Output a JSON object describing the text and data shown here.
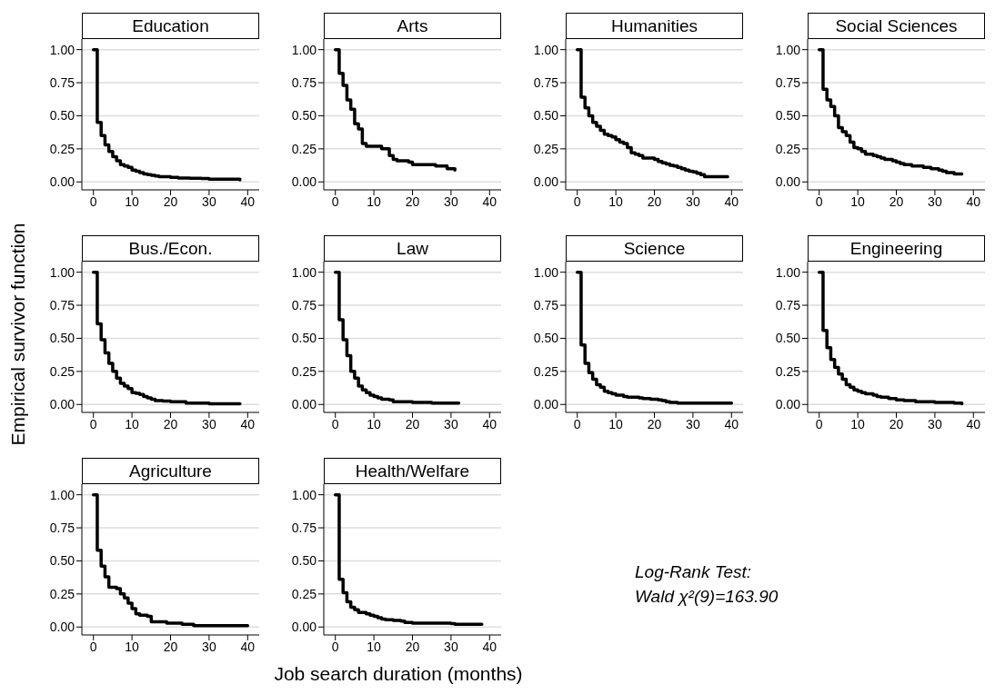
{
  "chart_data": [
    {
      "type": "step",
      "title": "Education",
      "color": "#000000",
      "x": [
        0,
        1,
        2,
        3,
        4,
        5,
        6,
        7,
        8,
        9,
        10,
        11,
        12,
        13,
        14,
        15,
        16,
        17,
        20,
        22,
        25,
        28,
        30,
        38
      ],
      "values": [
        1,
        0.45,
        0.35,
        0.28,
        0.23,
        0.19,
        0.16,
        0.13,
        0.12,
        0.11,
        0.09,
        0.08,
        0.07,
        0.06,
        0.055,
        0.05,
        0.045,
        0.04,
        0.035,
        0.03,
        0.028,
        0.025,
        0.02,
        0.015
      ],
      "xlim": [
        -3,
        43
      ],
      "ylim": [
        -0.06,
        1.08
      ],
      "xticks": [
        0,
        10,
        20,
        30,
        40
      ],
      "yticks": [
        {
          "value": 0,
          "label": "0.00"
        },
        {
          "value": 0.25,
          "label": "0.25"
        },
        {
          "value": 0.5,
          "label": "0.50"
        },
        {
          "value": 0.75,
          "label": "0.75"
        },
        {
          "value": 1,
          "label": "1.00"
        }
      ],
      "grid": "y"
    },
    {
      "type": "step",
      "title": "Arts",
      "color": "#000000",
      "x": [
        0,
        1,
        2,
        3,
        4,
        5,
        6,
        7,
        8,
        12,
        14,
        15,
        16,
        19,
        20,
        26,
        29,
        31
      ],
      "values": [
        1,
        0.82,
        0.73,
        0.62,
        0.55,
        0.44,
        0.4,
        0.29,
        0.27,
        0.25,
        0.2,
        0.17,
        0.16,
        0.15,
        0.13,
        0.12,
        0.1,
        0.09
      ],
      "xlim": [
        -3,
        43
      ],
      "ylim": [
        -0.06,
        1.08
      ],
      "xticks": [
        0,
        10,
        20,
        30,
        40
      ],
      "yticks": [
        {
          "value": 0,
          "label": "0.00"
        },
        {
          "value": 0.25,
          "label": "0.25"
        },
        {
          "value": 0.5,
          "label": "0.50"
        },
        {
          "value": 0.75,
          "label": "0.75"
        },
        {
          "value": 1,
          "label": "1.00"
        }
      ],
      "grid": "y"
    },
    {
      "type": "step",
      "title": "Humanities",
      "color": "#000000",
      "x": [
        0,
        1,
        2,
        3,
        4,
        5,
        6,
        7,
        8,
        9,
        10,
        11,
        12,
        13,
        14,
        15,
        16,
        17,
        20,
        21,
        22,
        23,
        24,
        25,
        26,
        27,
        28,
        29,
        30,
        31,
        32,
        33,
        39
      ],
      "values": [
        1,
        0.64,
        0.56,
        0.5,
        0.45,
        0.42,
        0.39,
        0.36,
        0.35,
        0.34,
        0.32,
        0.3,
        0.29,
        0.26,
        0.22,
        0.21,
        0.2,
        0.18,
        0.17,
        0.155,
        0.145,
        0.135,
        0.125,
        0.12,
        0.11,
        0.1,
        0.09,
        0.08,
        0.075,
        0.065,
        0.055,
        0.04,
        0.04
      ],
      "xlim": [
        -3,
        43
      ],
      "ylim": [
        -0.06,
        1.08
      ],
      "xticks": [
        0,
        10,
        20,
        30,
        40
      ],
      "yticks": [
        {
          "value": 0,
          "label": "0.00"
        },
        {
          "value": 0.25,
          "label": "0.25"
        },
        {
          "value": 0.5,
          "label": "0.50"
        },
        {
          "value": 0.75,
          "label": "0.75"
        },
        {
          "value": 1,
          "label": "1.00"
        }
      ],
      "grid": "y"
    },
    {
      "type": "step",
      "title": "Social Sciences",
      "color": "#000000",
      "x": [
        0,
        1,
        2,
        3,
        4,
        5,
        6,
        7,
        8,
        9,
        10,
        11,
        12,
        14,
        15,
        16,
        17,
        19,
        20,
        21,
        22,
        24,
        27,
        29,
        31,
        32,
        33,
        35,
        37
      ],
      "values": [
        1,
        0.7,
        0.62,
        0.57,
        0.5,
        0.41,
        0.38,
        0.35,
        0.3,
        0.26,
        0.25,
        0.23,
        0.21,
        0.2,
        0.19,
        0.18,
        0.17,
        0.16,
        0.15,
        0.14,
        0.13,
        0.12,
        0.11,
        0.1,
        0.09,
        0.08,
        0.07,
        0.06,
        0.06
      ],
      "xlim": [
        -3,
        43
      ],
      "ylim": [
        -0.06,
        1.08
      ],
      "xticks": [
        0,
        10,
        20,
        30,
        40
      ],
      "yticks": [
        {
          "value": 0,
          "label": "0.00"
        },
        {
          "value": 0.25,
          "label": "0.25"
        },
        {
          "value": 0.5,
          "label": "0.50"
        },
        {
          "value": 0.75,
          "label": "0.75"
        },
        {
          "value": 1,
          "label": "1.00"
        }
      ],
      "grid": "y"
    },
    {
      "type": "step",
      "title": "Bus./Econ.",
      "ylabel": "Empirical survivor function",
      "color": "#000000",
      "x": [
        0,
        1,
        2,
        3,
        4,
        5,
        6,
        7,
        8,
        9,
        10,
        11,
        12,
        13,
        14,
        15,
        16,
        18,
        20,
        24,
        30,
        38
      ],
      "values": [
        1,
        0.61,
        0.49,
        0.39,
        0.31,
        0.25,
        0.2,
        0.16,
        0.14,
        0.12,
        0.09,
        0.085,
        0.075,
        0.06,
        0.05,
        0.04,
        0.03,
        0.025,
        0.02,
        0.01,
        0.005,
        0.005
      ],
      "xlim": [
        -3,
        43
      ],
      "ylim": [
        -0.06,
        1.08
      ],
      "xticks": [
        0,
        10,
        20,
        30,
        40
      ],
      "yticks": [
        {
          "value": 0,
          "label": "0.00"
        },
        {
          "value": 0.25,
          "label": "0.25"
        },
        {
          "value": 0.5,
          "label": "0.50"
        },
        {
          "value": 0.75,
          "label": "0.75"
        },
        {
          "value": 1,
          "label": "1.00"
        }
      ],
      "grid": "y"
    },
    {
      "type": "step",
      "title": "Law",
      "color": "#000000",
      "x": [
        0,
        1,
        2,
        3,
        4,
        5,
        6,
        7,
        8,
        9,
        10,
        11,
        12,
        14,
        15,
        20,
        25,
        32
      ],
      "values": [
        1,
        0.64,
        0.49,
        0.37,
        0.25,
        0.2,
        0.14,
        0.11,
        0.09,
        0.07,
        0.06,
        0.05,
        0.04,
        0.035,
        0.02,
        0.015,
        0.01,
        0.01
      ],
      "xlim": [
        -3,
        43
      ],
      "ylim": [
        -0.06,
        1.08
      ],
      "xticks": [
        0,
        10,
        20,
        30,
        40
      ],
      "yticks": [
        {
          "value": 0,
          "label": "0.00"
        },
        {
          "value": 0.25,
          "label": "0.25"
        },
        {
          "value": 0.5,
          "label": "0.50"
        },
        {
          "value": 0.75,
          "label": "0.75"
        },
        {
          "value": 1,
          "label": "1.00"
        }
      ],
      "grid": "y"
    },
    {
      "type": "step",
      "title": "Science",
      "color": "#000000",
      "x": [
        0,
        1,
        2,
        3,
        4,
        5,
        6,
        7,
        8,
        9,
        10,
        12,
        13,
        16,
        17,
        19,
        21,
        22,
        23,
        24,
        26,
        40
      ],
      "values": [
        1,
        0.45,
        0.31,
        0.24,
        0.19,
        0.15,
        0.13,
        0.1,
        0.09,
        0.08,
        0.07,
        0.06,
        0.055,
        0.05,
        0.045,
        0.04,
        0.035,
        0.03,
        0.02,
        0.015,
        0.01,
        0.01
      ],
      "xlim": [
        -3,
        43
      ],
      "ylim": [
        -0.06,
        1.08
      ],
      "xticks": [
        0,
        10,
        20,
        30,
        40
      ],
      "yticks": [
        {
          "value": 0,
          "label": "0.00"
        },
        {
          "value": 0.25,
          "label": "0.25"
        },
        {
          "value": 0.5,
          "label": "0.50"
        },
        {
          "value": 0.75,
          "label": "0.75"
        },
        {
          "value": 1,
          "label": "1.00"
        }
      ],
      "grid": "y"
    },
    {
      "type": "step",
      "title": "Engineering",
      "color": "#000000",
      "x": [
        0,
        1,
        2,
        3,
        4,
        5,
        6,
        7,
        8,
        9,
        10,
        11,
        12,
        14,
        15,
        16,
        18,
        20,
        22,
        25,
        30,
        35,
        37
      ],
      "values": [
        1,
        0.56,
        0.43,
        0.34,
        0.28,
        0.23,
        0.19,
        0.15,
        0.13,
        0.11,
        0.1,
        0.09,
        0.08,
        0.07,
        0.06,
        0.055,
        0.045,
        0.035,
        0.03,
        0.02,
        0.015,
        0.01,
        0.005
      ],
      "xlim": [
        -3,
        43
      ],
      "ylim": [
        -0.06,
        1.08
      ],
      "xticks": [
        0,
        10,
        20,
        30,
        40
      ],
      "yticks": [
        {
          "value": 0,
          "label": "0.00"
        },
        {
          "value": 0.25,
          "label": "0.25"
        },
        {
          "value": 0.5,
          "label": "0.50"
        },
        {
          "value": 0.75,
          "label": "0.75"
        },
        {
          "value": 1,
          "label": "1.00"
        }
      ],
      "grid": "y"
    },
    {
      "type": "step",
      "title": "Agriculture",
      "xlabel": "Job search duration (months)",
      "color": "#000000",
      "x": [
        0,
        1,
        2,
        3,
        4,
        6,
        7,
        8,
        9,
        10,
        11,
        12,
        14,
        15,
        19,
        23,
        26,
        40
      ],
      "values": [
        1,
        0.58,
        0.46,
        0.38,
        0.3,
        0.29,
        0.25,
        0.22,
        0.18,
        0.14,
        0.1,
        0.09,
        0.08,
        0.04,
        0.03,
        0.02,
        0.01,
        0.01
      ],
      "xlim": [
        -3,
        43
      ],
      "ylim": [
        -0.06,
        1.08
      ],
      "xticks": [
        0,
        10,
        20,
        30,
        40
      ],
      "yticks": [
        {
          "value": 0,
          "label": "0.00"
        },
        {
          "value": 0.25,
          "label": "0.25"
        },
        {
          "value": 0.5,
          "label": "0.50"
        },
        {
          "value": 0.75,
          "label": "0.75"
        },
        {
          "value": 1,
          "label": "1.00"
        }
      ],
      "grid": "y"
    },
    {
      "type": "step",
      "title": "Health/Welfare",
      "annotations": [
        "Log-Rank Test:",
        "Wald χ²(9)=163.90"
      ],
      "color": "#000000",
      "x": [
        0,
        1,
        2,
        3,
        4,
        5,
        6,
        8,
        9,
        10,
        11,
        12,
        13,
        15,
        17,
        18,
        20,
        25,
        30,
        31,
        38
      ],
      "values": [
        1,
        0.36,
        0.26,
        0.19,
        0.15,
        0.13,
        0.11,
        0.1,
        0.09,
        0.08,
        0.07,
        0.06,
        0.055,
        0.05,
        0.045,
        0.035,
        0.03,
        0.03,
        0.025,
        0.02,
        0.02
      ],
      "xlim": [
        -3,
        43
      ],
      "ylim": [
        -0.06,
        1.08
      ],
      "xticks": [
        0,
        10,
        20,
        30,
        40
      ],
      "yticks": [
        {
          "value": 0,
          "label": "0.00"
        },
        {
          "value": 0.25,
          "label": "0.25"
        },
        {
          "value": 0.5,
          "label": "0.50"
        },
        {
          "value": 0.75,
          "label": "0.75"
        },
        {
          "value": 1,
          "label": "1.00"
        }
      ],
      "grid": "y"
    }
  ]
}
